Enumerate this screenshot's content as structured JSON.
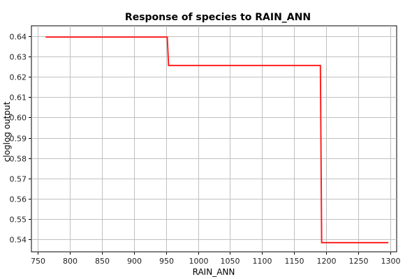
{
  "chart_data": {
    "type": "line",
    "title": "Response of species to RAIN_ANN",
    "xlabel": "RAIN_ANN",
    "ylabel": "cloglog output",
    "xlim": [
      740,
      1310
    ],
    "ylim": [
      0.534,
      0.645
    ],
    "xticks": [
      750,
      800,
      850,
      900,
      950,
      1000,
      1050,
      1100,
      1150,
      1200,
      1250,
      1300
    ],
    "yticks": [
      0.54,
      0.55,
      0.56,
      0.57,
      0.58,
      0.59,
      0.6,
      0.61,
      0.62,
      0.63,
      0.64
    ],
    "xtick_labels": [
      "750",
      "800",
      "850",
      "900",
      "950",
      "1000",
      "1050",
      "1100",
      "1150",
      "1200",
      "1250",
      "1300"
    ],
    "ytick_labels": [
      "0.54",
      "0.55",
      "0.56",
      "0.57",
      "0.58",
      "0.59",
      "0.60",
      "0.61",
      "0.62",
      "0.63",
      "0.64"
    ],
    "grid": true,
    "series": [
      {
        "color": "#ff2020",
        "x": [
          762,
          952,
          954,
          1191,
          1193,
          1297
        ],
        "y": [
          0.6395,
          0.6395,
          0.6255,
          0.6255,
          0.5385,
          0.5385
        ]
      }
    ]
  }
}
